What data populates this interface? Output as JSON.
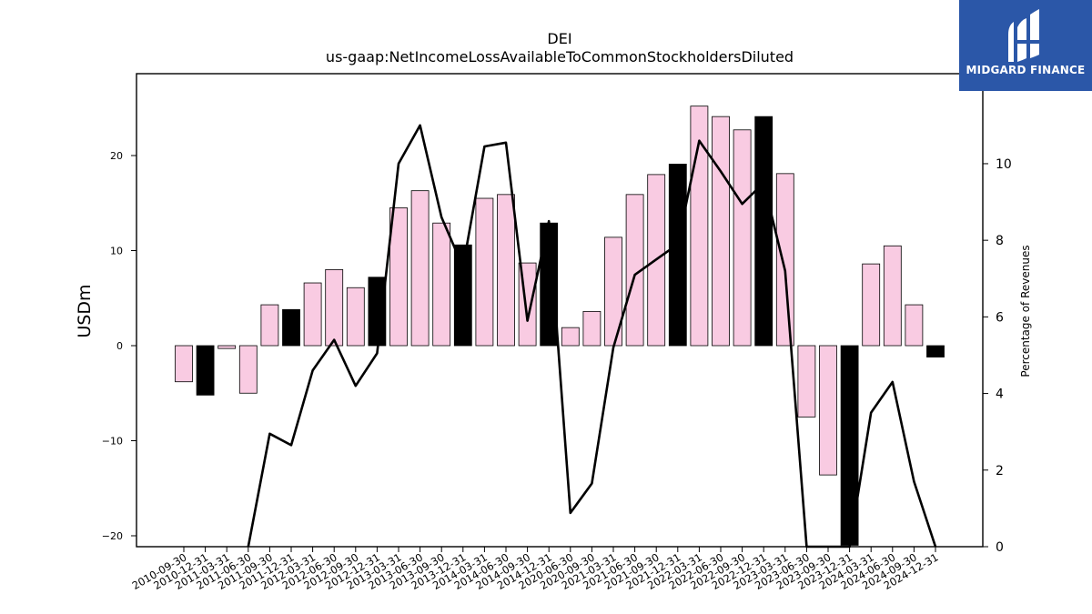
{
  "chart_data": {
    "type": "bar",
    "title": "DEI",
    "subtitle": "us-gaap:NetIncomeLossAvailableToCommonStockholdersDiluted",
    "ylabel": "USDm",
    "y2label": "Percentage of Revenues",
    "ylim": [
      -21,
      28.5
    ],
    "y2lim": [
      0,
      12.35
    ],
    "yticks": [
      -20,
      -10,
      0,
      10,
      20
    ],
    "y2ticks": [
      0,
      2,
      4,
      6,
      8,
      10
    ],
    "categories": [
      "2010-09-30",
      "2010-12-31",
      "2011-03-31",
      "2011-06-30",
      "2011-09-30",
      "2011-12-31",
      "2012-03-31",
      "2012-06-30",
      "2012-09-30",
      "2012-12-31",
      "2013-03-31",
      "2013-06-30",
      "2013-09-30",
      "2013-12-31",
      "2014-03-31",
      "2014-06-30",
      "2014-09-30",
      "2014-12-31",
      "2020-06-30",
      "2020-09-30",
      "2021-03-31",
      "2021-06-30",
      "2021-09-30",
      "2021-12-31",
      "2022-03-31",
      "2022-06-30",
      "2022-09-30",
      "2022-12-31",
      "2023-03-31",
      "2023-06-30",
      "2023-09-30",
      "2023-12-31",
      "2024-03-31",
      "2024-06-30",
      "2024-09-30",
      "2024-12-31"
    ],
    "series": [
      {
        "type": "bar",
        "axis": "left",
        "values": [
          -3.8,
          -5.2,
          -0.3,
          -5.0,
          4.3,
          3.8,
          6.6,
          8.0,
          6.1,
          7.2,
          14.5,
          16.3,
          12.9,
          10.6,
          15.5,
          15.9,
          8.7,
          12.9,
          1.9,
          3.6,
          11.4,
          15.9,
          18.0,
          19.1,
          25.2,
          24.1,
          22.7,
          24.1,
          18.1,
          -7.5,
          -13.6,
          -21.0,
          8.6,
          10.5,
          4.3,
          -1.2
        ],
        "highlight": [
          false,
          true,
          false,
          false,
          false,
          true,
          false,
          false,
          false,
          true,
          false,
          false,
          false,
          true,
          false,
          false,
          false,
          true,
          false,
          false,
          false,
          false,
          false,
          true,
          false,
          false,
          false,
          true,
          false,
          false,
          false,
          true,
          false,
          false,
          false,
          true
        ]
      },
      {
        "type": "line",
        "axis": "right",
        "values": [
          null,
          null,
          null,
          0,
          2.95,
          2.65,
          4.6,
          5.4,
          4.2,
          5.05,
          10.0,
          11.0,
          8.6,
          7.3,
          10.45,
          10.55,
          5.9,
          8.5,
          0.88,
          1.65,
          5.2,
          7.1,
          7.5,
          7.9,
          10.6,
          9.8,
          8.95,
          9.5,
          7.2,
          0,
          0,
          0,
          3.5,
          4.3,
          1.7,
          0
        ]
      }
    ],
    "colors": {
      "bar": "#f9cbe2",
      "bar_highlight": "#000000",
      "line": "#000000"
    }
  },
  "logo": {
    "text": "MIDGARD FINANCE"
  }
}
